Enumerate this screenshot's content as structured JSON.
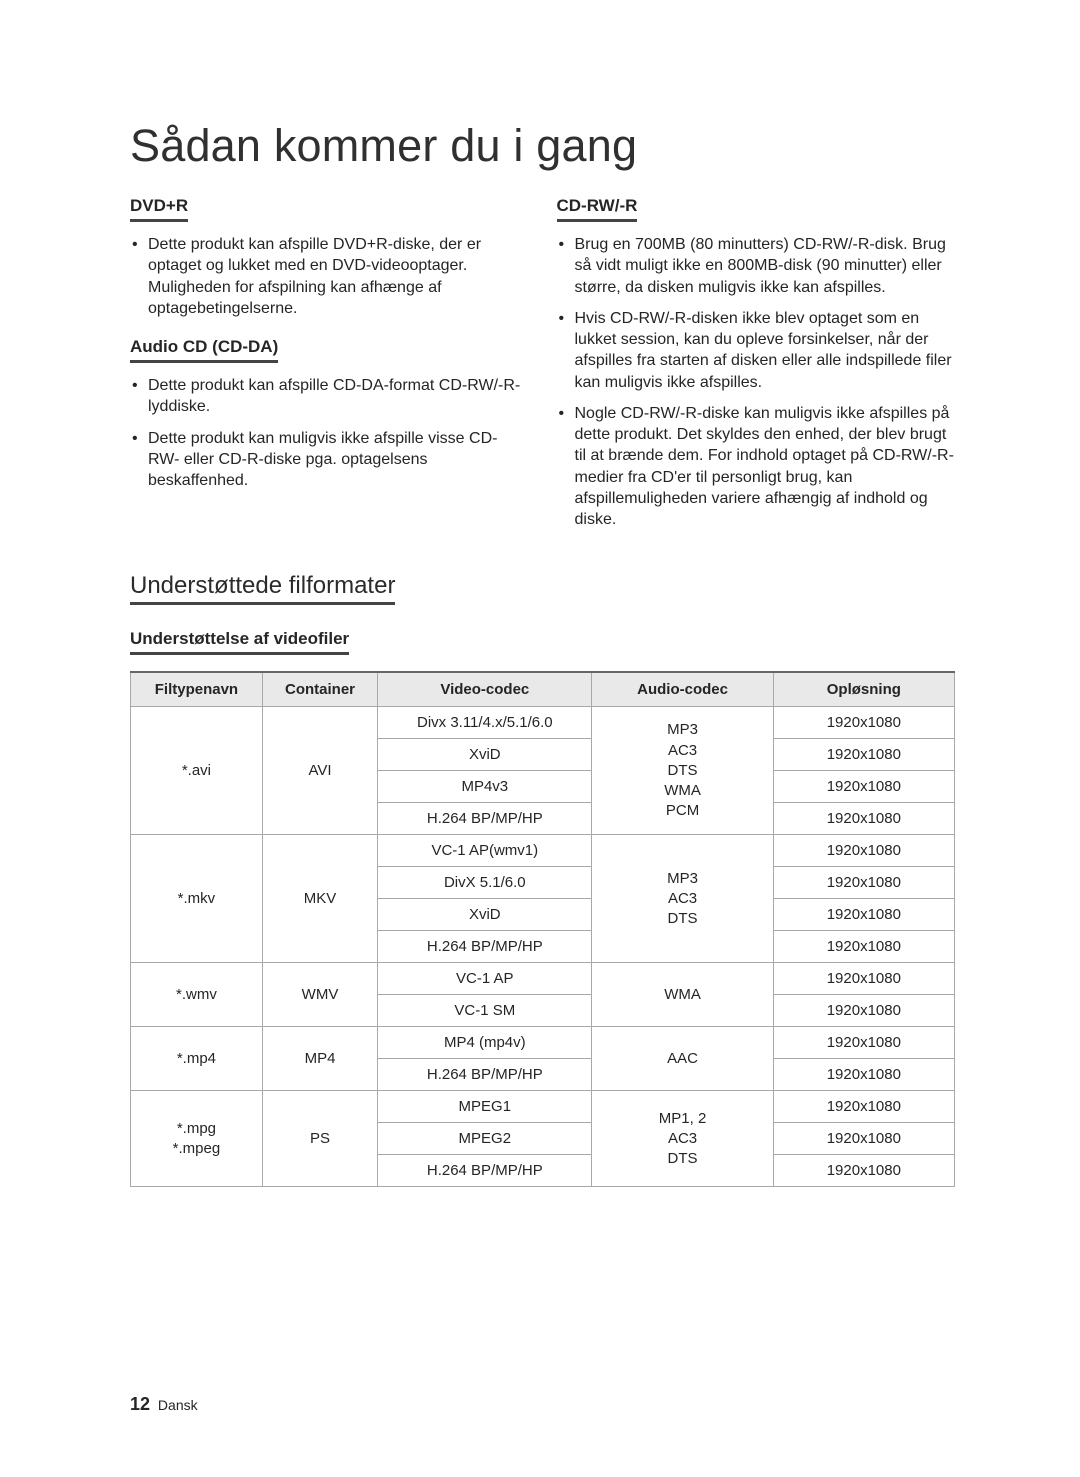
{
  "title": "Sådan kommer du i gang",
  "left": {
    "sec1": {
      "head": "DVD+R",
      "items": [
        "Dette produkt kan afspille DVD+R-diske, der er optaget og lukket med en DVD-videooptager. Muligheden for afspilning kan afhænge af optagebetingelserne."
      ]
    },
    "sec2": {
      "head": "Audio CD (CD-DA)",
      "items": [
        "Dette produkt kan afspille CD-DA-format CD-RW/-R-lyddiske.",
        "Dette produkt kan muligvis ikke afspille visse CD-RW- eller CD-R-diske pga. optagelsens beskaffenhed."
      ]
    }
  },
  "right": {
    "sec1": {
      "head": "CD-RW/-R",
      "items": [
        "Brug en 700MB (80 minutters) CD-RW/-R-disk. Brug så vidt muligt ikke en 800MB-disk (90 minutter) eller større, da disken muligvis ikke kan afspilles.",
        "Hvis CD-RW/-R-disken ikke blev optaget som en lukket session, kan du opleve forsinkelser, når der afspilles fra starten af disken eller alle indspillede filer kan muligvis ikke afspilles.",
        "Nogle CD-RW/-R-diske kan muligvis ikke afspilles på dette produkt. Det skyldes den enhed, der blev brugt til at brænde dem. For indhold optaget på CD-RW/-R-medier fra CD'er til personligt brug, kan afspillemuligheden variere afhængig af indhold og diske."
      ]
    }
  },
  "formats_heading": "Understøttede filformater",
  "video_heading": "Understøttelse af videofiler",
  "th": {
    "ext": "Filtypenavn",
    "container": "Container",
    "vcodec": "Video-codec",
    "acodec": "Audio-codec",
    "res": "Opløsning"
  },
  "rows": {
    "avi_ext": "*.avi",
    "avi_container": "AVI",
    "avi_v1": "Divx 3.11/4.x/5.1/6.0",
    "avi_v2": "XviD",
    "avi_v3": "MP4v3",
    "avi_v4": "H.264 BP/MP/HP",
    "avi_audio": "MP3\nAC3\nDTS\nWMA\nPCM",
    "mkv_ext": "*.mkv",
    "mkv_container": "MKV",
    "mkv_v1": "VC-1 AP(wmv1)",
    "mkv_v2": "DivX 5.1/6.0",
    "mkv_v3": "XviD",
    "mkv_v4": "H.264 BP/MP/HP",
    "mkv_audio": "MP3\nAC3\nDTS",
    "wmv_ext": "*.wmv",
    "wmv_container": "WMV",
    "wmv_v1": "VC-1 AP",
    "wmv_v2": "VC-1 SM",
    "wmv_audio": "WMA",
    "mp4_ext": "*.mp4",
    "mp4_container": "MP4",
    "mp4_v1": "MP4 (mp4v)",
    "mp4_v2": "H.264 BP/MP/HP",
    "mp4_audio": "AAC",
    "mpg_ext": "*.mpg\n*.mpeg",
    "mpg_container": "PS",
    "mpg_v1": "MPEG1",
    "mpg_v2": "MPEG2",
    "mpg_v3": "H.264 BP/MP/HP",
    "mpg_audio": "MP1, 2\nAC3\nDTS",
    "res": "1920x1080"
  },
  "footer": {
    "page": "12",
    "lang": "Dansk"
  }
}
